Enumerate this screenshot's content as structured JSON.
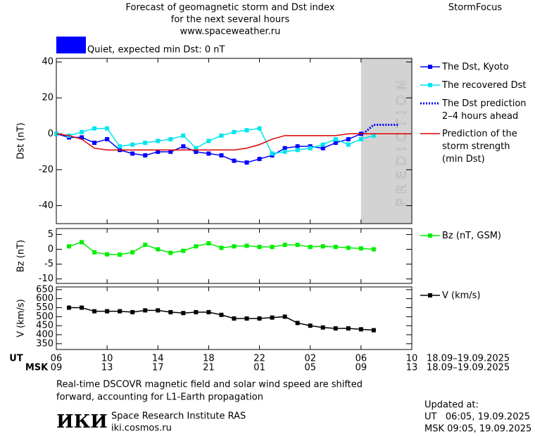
{
  "header": {
    "title_lines": [
      "Forecast of geomagnetic storm and Dst index",
      "for the next several hours",
      "www.spaceweather.ru"
    ],
    "brand": "StormFocus",
    "status": {
      "text": "Quiet, expected min Dst: 0 nT",
      "color": "#0000ff"
    }
  },
  "time_axis": {
    "xlim": [
      0,
      28
    ],
    "ut_label": "UT",
    "msk_label": "MSK",
    "ut_ticks": [
      {
        "value": 0,
        "label": "06"
      },
      {
        "value": 4,
        "label": "10"
      },
      {
        "value": 8,
        "label": "14"
      },
      {
        "value": 12,
        "label": "18"
      },
      {
        "value": 16,
        "label": "22"
      },
      {
        "value": 20,
        "label": "02"
      },
      {
        "value": 24,
        "label": "06"
      },
      {
        "value": 28,
        "label": "10"
      }
    ],
    "msk_ticks": [
      {
        "value": 0,
        "label": "09"
      },
      {
        "value": 4,
        "label": "13"
      },
      {
        "value": 8,
        "label": "17"
      },
      {
        "value": 12,
        "label": "21"
      },
      {
        "value": 16,
        "label": "01"
      },
      {
        "value": 20,
        "label": "05"
      },
      {
        "value": 24,
        "label": "09"
      },
      {
        "value": 28,
        "label": "13"
      }
    ],
    "ut_date_range": "18.09–19.09.2025",
    "msk_date_range": "18.09–19.09.2025"
  },
  "chart_data": [
    {
      "type": "line",
      "y_label": "Dst (nT)",
      "ylim": [
        -50,
        42
      ],
      "yticks": [
        40,
        20,
        0,
        -20,
        -40
      ],
      "prediction_region": {
        "range": [
          24,
          28
        ],
        "label": "PREDICTION",
        "color": "#d3d3d3"
      },
      "series": [
        {
          "name": "The Dst, Kyoto",
          "color": "#0000ff",
          "marker": "square",
          "x": [
            0,
            1,
            2,
            3,
            4,
            5,
            6,
            7,
            8,
            9,
            10,
            11,
            12,
            13,
            14,
            15,
            16,
            17,
            18,
            19,
            20,
            21,
            22,
            23,
            24
          ],
          "values": [
            0,
            -2,
            -2,
            -5,
            -3,
            -9,
            -11,
            -12,
            -10,
            -10,
            -7,
            -10,
            -11,
            -12,
            -15,
            -16,
            -14,
            -12,
            -8,
            -7,
            -7,
            -8,
            -5,
            -3,
            0
          ]
        },
        {
          "name": "The recovered Dst",
          "color": "#00e5ee",
          "marker": "square",
          "x": [
            0,
            1,
            2,
            3,
            4,
            5,
            6,
            7,
            8,
            9,
            10,
            11,
            12,
            13,
            14,
            15,
            16,
            17,
            18,
            19,
            20,
            21,
            22,
            23,
            24,
            25
          ],
          "values": [
            0,
            -1,
            1,
            3,
            3,
            -7,
            -6,
            -5,
            -4,
            -3,
            -1,
            -8,
            -4,
            -1,
            1,
            2,
            3,
            -11,
            -10,
            -9,
            -8,
            -6,
            -3,
            -6,
            -3,
            -1
          ]
        },
        {
          "name": "The Dst prediction\n2–4 hours ahead",
          "color": "#0000ff",
          "dash": true,
          "x": [
            24,
            25,
            26,
            27
          ],
          "values": [
            -1,
            5,
            5,
            5
          ]
        },
        {
          "name": "Prediction of the\nstorm strength\n(min Dst)",
          "color": "#dd0000",
          "x": [
            0,
            1,
            2,
            3,
            4,
            5,
            6,
            7,
            8,
            9,
            10,
            11,
            12,
            13,
            14,
            15,
            16,
            17,
            18,
            19,
            20,
            21,
            22,
            23,
            24,
            25,
            26,
            27,
            28
          ],
          "values": [
            0,
            -1,
            -3,
            -8,
            -9,
            -9,
            -9,
            -9,
            -9,
            -9,
            -9,
            -9,
            -9,
            -9,
            -9,
            -8,
            -6,
            -3,
            -1,
            -1,
            -1,
            -1,
            -1,
            0,
            0,
            0,
            0,
            0,
            0
          ]
        }
      ]
    },
    {
      "type": "line",
      "y_label": "Bz (nT)",
      "ylim": [
        -11.5,
        7
      ],
      "yticks": [
        5,
        0,
        -5,
        -10
      ],
      "series": [
        {
          "name": "Bz (nT, GSM)",
          "color": "#00ee00",
          "marker": "square",
          "x": [
            1,
            2,
            3,
            4,
            5,
            6,
            7,
            8,
            9,
            10,
            11,
            12,
            13,
            14,
            15,
            16,
            17,
            18,
            19,
            20,
            21,
            22,
            23,
            24,
            25
          ],
          "values": [
            1,
            2.4,
            -1,
            -1.7,
            -1.8,
            -1,
            1.5,
            0,
            -1.2,
            -0.5,
            1,
            2,
            0.5,
            1,
            1.2,
            0.8,
            0.8,
            1.5,
            1.5,
            0.8,
            1,
            0.8,
            0.5,
            0.3,
            0
          ]
        }
      ]
    },
    {
      "type": "line",
      "y_label": "V (km/s)",
      "ylim": [
        318,
        665
      ],
      "yticks": [
        650,
        600,
        550,
        500,
        450,
        400,
        350
      ],
      "series": [
        {
          "name": "V (km/s)",
          "color": "#000000",
          "marker": "square",
          "x": [
            1,
            2,
            3,
            4,
            5,
            6,
            7,
            8,
            9,
            10,
            11,
            12,
            13,
            14,
            15,
            16,
            17,
            18,
            19,
            20,
            21,
            22,
            23,
            24,
            25
          ],
          "values": [
            550,
            550,
            530,
            530,
            530,
            525,
            535,
            535,
            525,
            520,
            525,
            525,
            510,
            490,
            490,
            490,
            495,
            500,
            465,
            450,
            440,
            435,
            435,
            430,
            425
          ]
        }
      ]
    }
  ],
  "footer": {
    "note_lines": [
      "Real-time DSCOVR magnetic field and solar wind speed are shifted",
      "forward, accounting for L1-Earth propagation"
    ],
    "logo": "ИКИ",
    "institute": "Space Research Institute RAS",
    "site": "iki.cosmos.ru",
    "updated_label": "Updated at:",
    "updated_ut": "UT   06:05, 19.09.2025",
    "updated_msk": "MSK 09:05, 19.09.2025"
  }
}
